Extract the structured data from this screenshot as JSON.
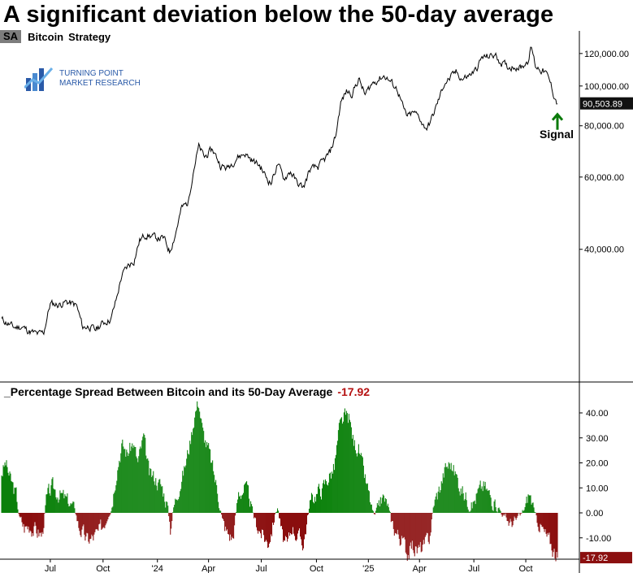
{
  "title": "A significant deviation below the 50-day average",
  "legend": {
    "symbol": "SA",
    "name": "Bitcoin",
    "label": "Strategy"
  },
  "logo": {
    "line1": "TURNING POINT",
    "line2": "MARKET RESEARCH"
  },
  "colors": {
    "positive": "#0a800a",
    "negative": "#8b0f0f",
    "line": "#000000",
    "signal_arrow": "#0a7a0a",
    "last_value_bg": "#111111",
    "last_spread_bg": "#8b0f0f",
    "logo": "#2a5aa8"
  },
  "signal": {
    "label": "Signal"
  },
  "chart_data": [
    {
      "type": "line",
      "title": "Bitcoin",
      "scale": "log",
      "ylim": [
        19000,
        135000
      ],
      "y_ticks": [
        {
          "value": 40000,
          "label": "40,000.00"
        },
        {
          "value": 60000,
          "label": "60,000.00"
        },
        {
          "value": 80000,
          "label": "80,000.00"
        },
        {
          "value": 100000,
          "label": "100,000.00"
        },
        {
          "value": 120000,
          "label": "120,000.00"
        }
      ],
      "last_value": 90503.89,
      "last_value_label": "90,503.89",
      "x_ticks": [
        "Jul",
        "Oct",
        "'24",
        "Apr",
        "Jul",
        "Oct",
        "'25",
        "Apr",
        "Jul",
        "Oct"
      ],
      "anchors": [
        {
          "t": 0,
          "v": 27000
        },
        {
          "t": 15,
          "v": 25800
        },
        {
          "t": 25,
          "v": 25900
        },
        {
          "t": 35,
          "v": 25200
        },
        {
          "t": 45,
          "v": 24800
        },
        {
          "t": 52,
          "v": 25100
        },
        {
          "t": 60,
          "v": 29500
        },
        {
          "t": 70,
          "v": 29300
        },
        {
          "t": 80,
          "v": 29800
        },
        {
          "t": 92,
          "v": 29200
        },
        {
          "t": 100,
          "v": 25800
        },
        {
          "t": 108,
          "v": 26000
        },
        {
          "t": 115,
          "v": 25400
        },
        {
          "t": 125,
          "v": 26500
        },
        {
          "t": 135,
          "v": 27100
        },
        {
          "t": 142,
          "v": 30500
        },
        {
          "t": 148,
          "v": 34500
        },
        {
          "t": 156,
          "v": 36500
        },
        {
          "t": 163,
          "v": 37500
        },
        {
          "t": 170,
          "v": 42000
        },
        {
          "t": 178,
          "v": 43500
        },
        {
          "t": 185,
          "v": 43000
        },
        {
          "t": 192,
          "v": 42600
        },
        {
          "t": 200,
          "v": 42500
        },
        {
          "t": 207,
          "v": 39500
        },
        {
          "t": 214,
          "v": 43500
        },
        {
          "t": 222,
          "v": 50500
        },
        {
          "t": 230,
          "v": 52000
        },
        {
          "t": 236,
          "v": 62000
        },
        {
          "t": 243,
          "v": 71000
        },
        {
          "t": 250,
          "v": 67000
        },
        {
          "t": 260,
          "v": 70000
        },
        {
          "t": 270,
          "v": 64000
        },
        {
          "t": 278,
          "v": 63000
        },
        {
          "t": 290,
          "v": 67000
        },
        {
          "t": 300,
          "v": 68500
        },
        {
          "t": 308,
          "v": 66000
        },
        {
          "t": 318,
          "v": 64000
        },
        {
          "t": 326,
          "v": 60000
        },
        {
          "t": 332,
          "v": 58000
        },
        {
          "t": 340,
          "v": 64500
        },
        {
          "t": 348,
          "v": 59500
        },
        {
          "t": 356,
          "v": 62000
        },
        {
          "t": 364,
          "v": 58000
        },
        {
          "t": 372,
          "v": 56500
        },
        {
          "t": 380,
          "v": 62500
        },
        {
          "t": 390,
          "v": 63500
        },
        {
          "t": 398,
          "v": 66000
        },
        {
          "t": 405,
          "v": 69000
        },
        {
          "t": 412,
          "v": 76000
        },
        {
          "t": 418,
          "v": 91000
        },
        {
          "t": 425,
          "v": 97000
        },
        {
          "t": 432,
          "v": 96000
        },
        {
          "t": 440,
          "v": 104000
        },
        {
          "t": 448,
          "v": 95000
        },
        {
          "t": 456,
          "v": 101000
        },
        {
          "t": 464,
          "v": 104000
        },
        {
          "t": 472,
          "v": 106000
        },
        {
          "t": 480,
          "v": 102000
        },
        {
          "t": 488,
          "v": 98000
        },
        {
          "t": 495,
          "v": 88000
        },
        {
          "t": 500,
          "v": 84000
        },
        {
          "t": 508,
          "v": 86000
        },
        {
          "t": 515,
          "v": 84000
        },
        {
          "t": 520,
          "v": 80000
        },
        {
          "t": 525,
          "v": 79000
        },
        {
          "t": 532,
          "v": 85000
        },
        {
          "t": 540,
          "v": 94000
        },
        {
          "t": 546,
          "v": 102000
        },
        {
          "t": 552,
          "v": 104000
        },
        {
          "t": 560,
          "v": 108000
        },
        {
          "t": 568,
          "v": 104000
        },
        {
          "t": 576,
          "v": 106000
        },
        {
          "t": 584,
          "v": 109000
        },
        {
          "t": 592,
          "v": 117000
        },
        {
          "t": 600,
          "v": 118000
        },
        {
          "t": 608,
          "v": 119000
        },
        {
          "t": 616,
          "v": 114000
        },
        {
          "t": 624,
          "v": 111000
        },
        {
          "t": 632,
          "v": 112000
        },
        {
          "t": 640,
          "v": 111000
        },
        {
          "t": 648,
          "v": 115000
        },
        {
          "t": 653,
          "v": 124000
        },
        {
          "t": 658,
          "v": 112000
        },
        {
          "t": 664,
          "v": 110000
        },
        {
          "t": 670,
          "v": 108000
        },
        {
          "t": 676,
          "v": 102000
        },
        {
          "t": 680,
          "v": 96000
        },
        {
          "t": 685,
          "v": 90504
        }
      ]
    },
    {
      "type": "bar",
      "title": "Percentage Spread Between Bitcoin and its 50-Day Average",
      "last_value": -17.92,
      "last_value_label": "-17.92",
      "ylim": [
        -18,
        46
      ],
      "y_ticks": [
        {
          "value": -10,
          "label": "-10.00"
        },
        {
          "value": 0,
          "label": "0.00"
        },
        {
          "value": 10,
          "label": "10.00"
        },
        {
          "value": 20,
          "label": "20.00"
        },
        {
          "value": 30,
          "label": "30.00"
        },
        {
          "value": 40,
          "label": "40.00"
        }
      ],
      "anchors": [
        {
          "t": 0,
          "v": 16
        },
        {
          "t": 5,
          "v": 20
        },
        {
          "t": 10,
          "v": 14
        },
        {
          "t": 18,
          "v": 7
        },
        {
          "t": 22,
          "v": -2
        },
        {
          "t": 28,
          "v": -6
        },
        {
          "t": 35,
          "v": -5
        },
        {
          "t": 42,
          "v": -7
        },
        {
          "t": 50,
          "v": -9
        },
        {
          "t": 55,
          "v": 5
        },
        {
          "t": 62,
          "v": 10
        },
        {
          "t": 70,
          "v": 8
        },
        {
          "t": 80,
          "v": 5
        },
        {
          "t": 90,
          "v": 2
        },
        {
          "t": 95,
          "v": -5
        },
        {
          "t": 105,
          "v": -11
        },
        {
          "t": 112,
          "v": -10
        },
        {
          "t": 120,
          "v": -8
        },
        {
          "t": 128,
          "v": -3
        },
        {
          "t": 135,
          "v": 2
        },
        {
          "t": 142,
          "v": 18
        },
        {
          "t": 148,
          "v": 27
        },
        {
          "t": 155,
          "v": 24
        },
        {
          "t": 162,
          "v": 28
        },
        {
          "t": 168,
          "v": 20
        },
        {
          "t": 175,
          "v": 30
        },
        {
          "t": 182,
          "v": 15
        },
        {
          "t": 190,
          "v": 14
        },
        {
          "t": 198,
          "v": 10
        },
        {
          "t": 204,
          "v": 4
        },
        {
          "t": 208,
          "v": -6
        },
        {
          "t": 212,
          "v": 2
        },
        {
          "t": 218,
          "v": 10
        },
        {
          "t": 225,
          "v": 17
        },
        {
          "t": 232,
          "v": 28
        },
        {
          "t": 238,
          "v": 40
        },
        {
          "t": 243,
          "v": 45
        },
        {
          "t": 248,
          "v": 32
        },
        {
          "t": 255,
          "v": 25
        },
        {
          "t": 262,
          "v": 15
        },
        {
          "t": 268,
          "v": 6
        },
        {
          "t": 272,
          "v": -3
        },
        {
          "t": 278,
          "v": -8
        },
        {
          "t": 285,
          "v": -10
        },
        {
          "t": 292,
          "v": 8
        },
        {
          "t": 300,
          "v": 10
        },
        {
          "t": 306,
          "v": 5
        },
        {
          "t": 312,
          "v": -3
        },
        {
          "t": 320,
          "v": -8
        },
        {
          "t": 328,
          "v": -12
        },
        {
          "t": 334,
          "v": -5
        },
        {
          "t": 340,
          "v": 3
        },
        {
          "t": 346,
          "v": -10
        },
        {
          "t": 352,
          "v": -14
        },
        {
          "t": 358,
          "v": -5
        },
        {
          "t": 366,
          "v": -10
        },
        {
          "t": 372,
          "v": -12
        },
        {
          "t": 380,
          "v": 4
        },
        {
          "t": 388,
          "v": 8
        },
        {
          "t": 396,
          "v": 10
        },
        {
          "t": 402,
          "v": 14
        },
        {
          "t": 410,
          "v": 18
        },
        {
          "t": 416,
          "v": 33
        },
        {
          "t": 422,
          "v": 38
        },
        {
          "t": 428,
          "v": 38
        },
        {
          "t": 434,
          "v": 28
        },
        {
          "t": 440,
          "v": 26
        },
        {
          "t": 446,
          "v": 16
        },
        {
          "t": 452,
          "v": 8
        },
        {
          "t": 456,
          "v": 2
        },
        {
          "t": 460,
          "v": -2
        },
        {
          "t": 465,
          "v": 4
        },
        {
          "t": 470,
          "v": 6
        },
        {
          "t": 476,
          "v": 3
        },
        {
          "t": 480,
          "v": -3
        },
        {
          "t": 487,
          "v": -8
        },
        {
          "t": 494,
          "v": -11
        },
        {
          "t": 500,
          "v": -16
        },
        {
          "t": 506,
          "v": -13
        },
        {
          "t": 512,
          "v": -15
        },
        {
          "t": 520,
          "v": -14
        },
        {
          "t": 527,
          "v": -10
        },
        {
          "t": 533,
          "v": 4
        },
        {
          "t": 540,
          "v": 10
        },
        {
          "t": 547,
          "v": 18
        },
        {
          "t": 553,
          "v": 20
        },
        {
          "t": 560,
          "v": 15
        },
        {
          "t": 566,
          "v": 10
        },
        {
          "t": 573,
          "v": 6
        },
        {
          "t": 580,
          "v": 3
        },
        {
          "t": 587,
          "v": 8
        },
        {
          "t": 594,
          "v": 11
        },
        {
          "t": 600,
          "v": 8
        },
        {
          "t": 607,
          "v": 4
        },
        {
          "t": 613,
          "v": 2
        },
        {
          "t": 620,
          "v": -2
        },
        {
          "t": 627,
          "v": -4
        },
        {
          "t": 634,
          "v": -3
        },
        {
          "t": 640,
          "v": -1
        },
        {
          "t": 646,
          "v": 3
        },
        {
          "t": 650,
          "v": 8
        },
        {
          "t": 654,
          "v": 4
        },
        {
          "t": 658,
          "v": -2
        },
        {
          "t": 664,
          "v": -5
        },
        {
          "t": 670,
          "v": -9
        },
        {
          "t": 676,
          "v": -12
        },
        {
          "t": 682,
          "v": -16
        },
        {
          "t": 685,
          "v": -17.92
        }
      ]
    }
  ]
}
